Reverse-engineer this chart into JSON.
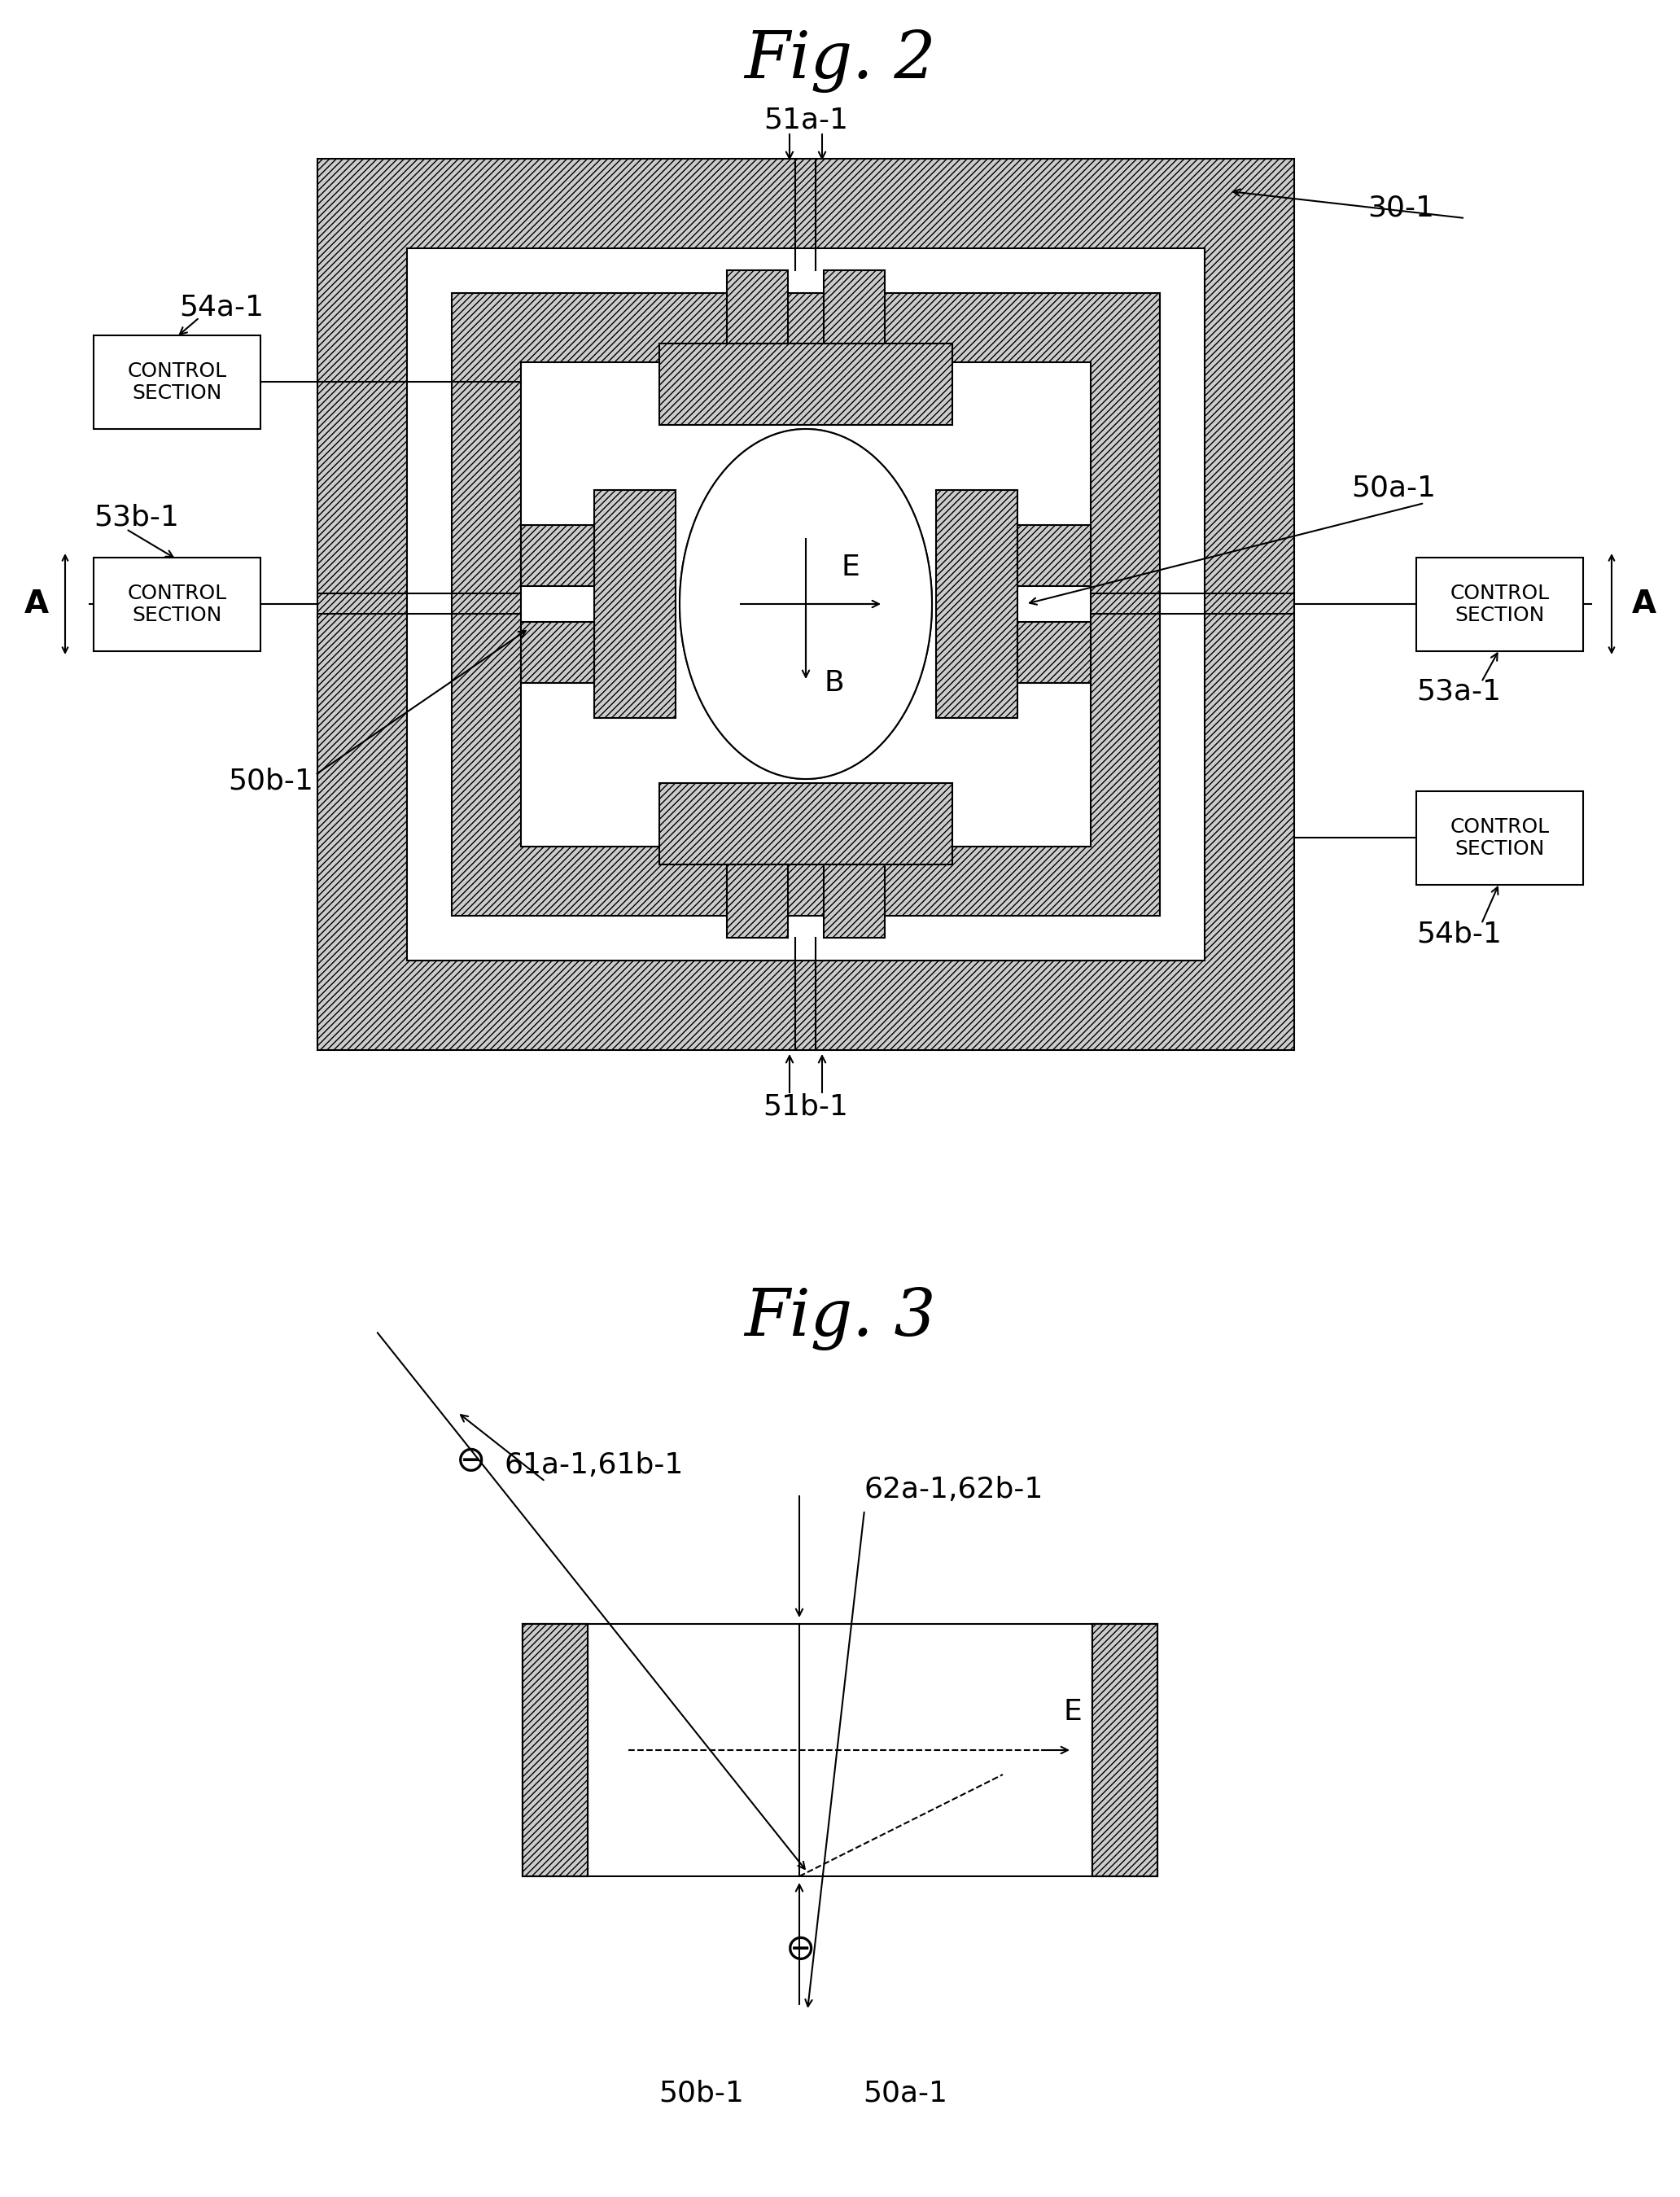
{
  "fig_title1": "Fig. 2",
  "fig_title2": "Fig. 3",
  "bg_color": "#ffffff",
  "label_30_1": "30-1",
  "label_51a_1": "51a-1",
  "label_51b_1": "51b-1",
  "label_50a_1": "50a-1",
  "label_50b_1": "50b-1",
  "label_53a_1": "53a-1",
  "label_53b_1": "53b-1",
  "label_54a_1": "54a-1",
  "label_54b_1": "54b-1",
  "label_E": "E",
  "label_B": "B",
  "label_A": "A",
  "control_section": "CONTROL\nSECTION",
  "label_61ab": "61a-1,61b-1",
  "label_62ab": "62a-1,62b-1",
  "label_50a_1_fig3": "50a-1",
  "label_50b_1_fig3": "50b-1",
  "hatch": "////",
  "lw": 1.5
}
